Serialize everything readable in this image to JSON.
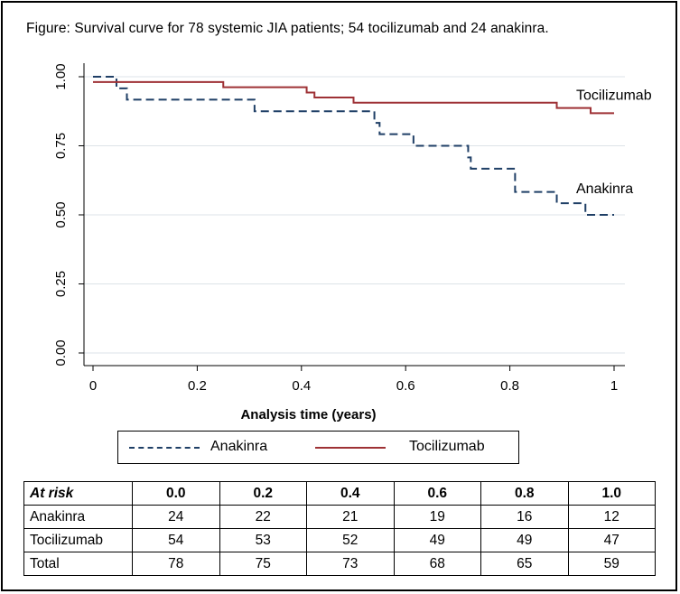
{
  "title": "Figure: Survival curve for 78 systemic JIA patients; 54 tocilizumab and 24 anakinra.",
  "chart_data": {
    "type": "line",
    "subtype": "kaplan-meier-step",
    "xlabel": "Analysis time (years)",
    "ylabel": "",
    "xlim": [
      0,
      1
    ],
    "ylim": [
      0,
      1
    ],
    "x_ticks": [
      "0",
      "0.2",
      "0.4",
      "0.6",
      "0.8",
      "1"
    ],
    "x_tick_values": [
      0,
      0.2,
      0.4,
      0.6,
      0.8,
      1
    ],
    "y_ticks": [
      "0.00",
      "0.25",
      "0.50",
      "0.75",
      "1.00"
    ],
    "y_tick_values": [
      0,
      0.25,
      0.5,
      0.75,
      1
    ],
    "grid": "horizontal",
    "series": [
      {
        "name": "Anakinra",
        "line_label": "Anakinra",
        "color": "#1f3f66",
        "style": "dashed",
        "steps": [
          [
            0,
            1.0
          ],
          [
            0.045,
            0.958
          ],
          [
            0.065,
            0.917
          ],
          [
            0.31,
            0.875
          ],
          [
            0.54,
            0.833
          ],
          [
            0.55,
            0.792
          ],
          [
            0.615,
            0.75
          ],
          [
            0.72,
            0.708
          ],
          [
            0.725,
            0.667
          ],
          [
            0.81,
            0.583
          ],
          [
            0.89,
            0.542
          ],
          [
            0.945,
            0.5
          ],
          [
            1.0,
            0.5
          ]
        ]
      },
      {
        "name": "Tocilizumab",
        "line_label": "Tocilizumab",
        "color": "#9e3135",
        "style": "solid",
        "steps": [
          [
            0,
            0.981
          ],
          [
            0.25,
            0.962
          ],
          [
            0.41,
            0.943
          ],
          [
            0.425,
            0.925
          ],
          [
            0.5,
            0.906
          ],
          [
            0.89,
            0.887
          ],
          [
            0.955,
            0.868
          ],
          [
            1.0,
            0.868
          ]
        ]
      }
    ],
    "legend": [
      {
        "label": "Anakinra",
        "style": "dashed",
        "color": "#1f3f66"
      },
      {
        "label": "Tocilizumab",
        "style": "solid",
        "color": "#9e3135"
      }
    ],
    "legend_position": "bottom"
  },
  "risk_table": {
    "header": [
      "At risk",
      "0.0",
      "0.2",
      "0.4",
      "0.6",
      "0.8",
      "1.0"
    ],
    "rows": [
      {
        "label": "Anakinra",
        "values": [
          "24",
          "22",
          "21",
          "19",
          "16",
          "12"
        ]
      },
      {
        "label": "Tocilizumab",
        "values": [
          "54",
          "53",
          "52",
          "49",
          "49",
          "47"
        ]
      },
      {
        "label": "Total",
        "values": [
          "78",
          "75",
          "73",
          "68",
          "65",
          "59"
        ]
      }
    ]
  }
}
